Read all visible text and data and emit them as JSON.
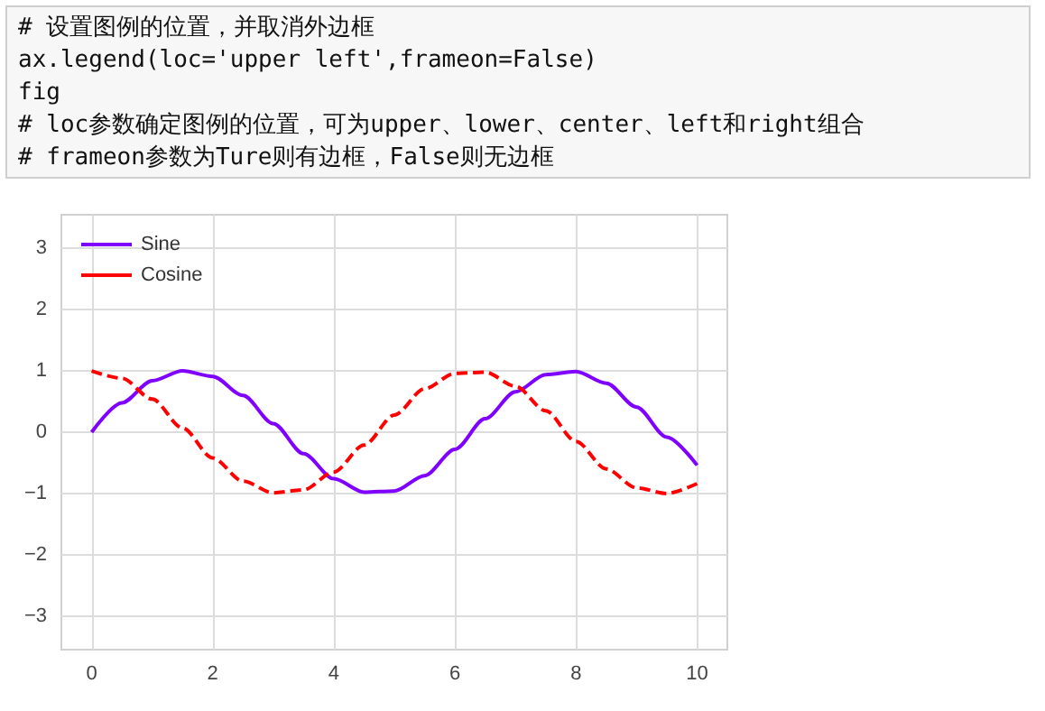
{
  "chart_data": {
    "type": "line",
    "annotations": [
      "# 设置图例的位置，并取消外边框",
      "ax.legend(loc='upper left',frameon=False)",
      "fig",
      "# loc参数确定图例的位置，可为upper、lower、center、left和right组合",
      "# frameon参数为Ture则有边框，False则无边框"
    ],
    "x": [
      0,
      0.5,
      1,
      1.5,
      2,
      2.5,
      3,
      3.5,
      4,
      4.5,
      5,
      5.5,
      6,
      6.5,
      7,
      7.5,
      8,
      8.5,
      9,
      9.5,
      10
    ],
    "series": [
      {
        "name": "Sine",
        "color": "#7f00ff",
        "line_style": "solid",
        "values": [
          0,
          0.48,
          0.84,
          1.0,
          0.91,
          0.6,
          0.14,
          -0.35,
          -0.76,
          -0.98,
          -0.96,
          -0.71,
          -0.28,
          0.22,
          0.66,
          0.94,
          0.99,
          0.8,
          0.41,
          -0.08,
          -0.54
        ]
      },
      {
        "name": "Cosine",
        "color": "#ff0000",
        "line_style": "dashed",
        "values": [
          1,
          0.88,
          0.54,
          0.07,
          -0.42,
          -0.8,
          -0.99,
          -0.94,
          -0.65,
          -0.21,
          0.28,
          0.71,
          0.96,
          0.98,
          0.75,
          0.35,
          -0.15,
          -0.6,
          -0.91,
          -1.0,
          -0.84
        ]
      }
    ],
    "xlim": [
      -0.5,
      10.5
    ],
    "xticks": [
      0,
      2,
      4,
      6,
      8,
      10
    ],
    "ylim": [
      -3.55,
      3.55
    ],
    "yticks": [
      -3,
      -2,
      -1,
      0,
      1,
      2,
      3
    ],
    "grid": true,
    "legend": "top left",
    "marker": "none"
  }
}
